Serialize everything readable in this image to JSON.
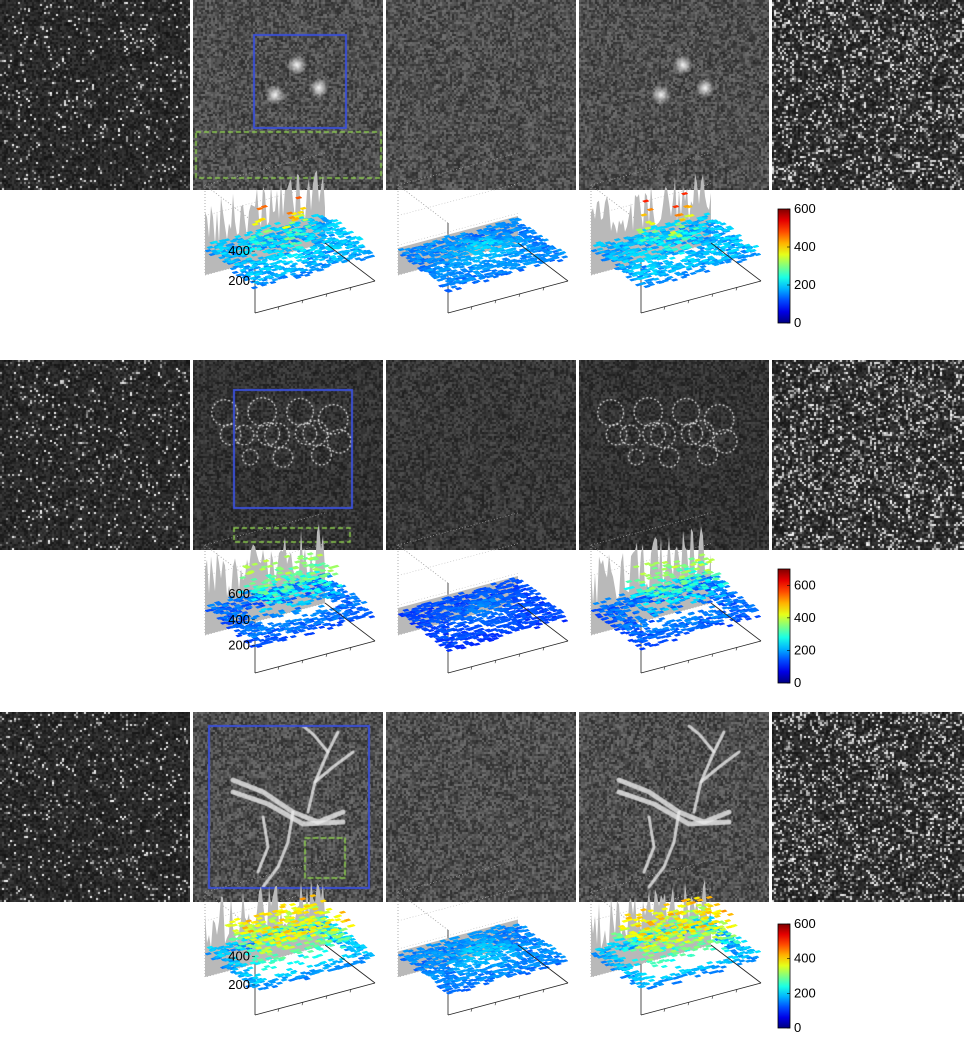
{
  "figure": {
    "panel_rows": [
      {
        "row": 1,
        "tiles": 5,
        "highlight_boxes": [
          "blue-solid",
          "green-dashed"
        ]
      },
      {
        "row": 2,
        "tiles": 5,
        "highlight_boxes": [
          "blue-solid",
          "green-dashed"
        ]
      },
      {
        "row": 3,
        "tiles": 5,
        "highlight_boxes": [
          "blue-solid",
          "green-dashed"
        ]
      }
    ],
    "colors": {
      "blue_box": "#3a4fd6",
      "green_box": "#8fd14f",
      "surface_gray": "#b9b9b9"
    }
  },
  "chart_data": [
    {
      "type": "heatmap",
      "panel": "row1-surface-plots",
      "plots": 3,
      "ztick_labels": [
        "200",
        "400"
      ],
      "zlim": [
        0,
        600
      ],
      "colorbar": {
        "ticks": [
          "0",
          "200",
          "400",
          "600"
        ],
        "range": [
          0,
          600
        ]
      }
    },
    {
      "type": "heatmap",
      "panel": "row2-surface-plots",
      "plots": 3,
      "ztick_labels": [
        "200",
        "400",
        "600"
      ],
      "zlim": [
        0,
        700
      ],
      "colorbar": {
        "ticks": [
          "0",
          "200",
          "400",
          "600"
        ],
        "range": [
          0,
          700
        ]
      }
    },
    {
      "type": "heatmap",
      "panel": "row3-surface-plots",
      "plots": 3,
      "ztick_labels": [
        "200",
        "400"
      ],
      "zlim": [
        0,
        600
      ],
      "colorbar": {
        "ticks": [
          "0",
          "200",
          "400",
          "600"
        ],
        "range": [
          0,
          600
        ]
      }
    }
  ]
}
